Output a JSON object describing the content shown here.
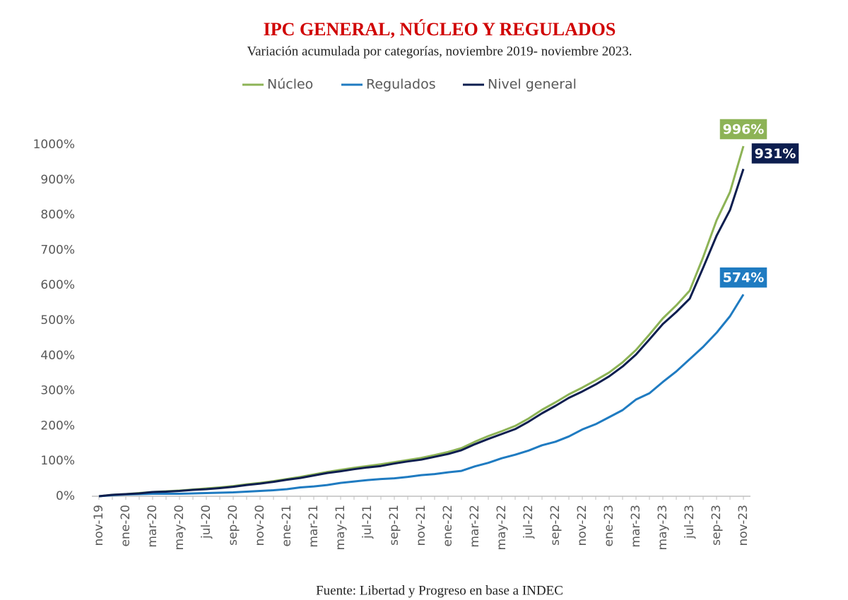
{
  "chart_data": {
    "type": "line",
    "title": "IPC GENERAL, NÚCLEO Y REGULADOS",
    "subtitle": "Variación acumulada por categorías, noviembre 2019- noviembre 2023.",
    "source": "Fuente: Libertad y Progreso en base a INDEC",
    "categories": [
      "nov-19",
      null,
      "ene-20",
      null,
      "mar-20",
      null,
      "may-20",
      null,
      "jul-20",
      null,
      "sep-20",
      null,
      "nov-20",
      null,
      "ene-21",
      null,
      "mar-21",
      null,
      "may-21",
      null,
      "jul-21",
      null,
      "sep-21",
      null,
      "nov-21",
      null,
      "ene-22",
      null,
      "mar-22",
      null,
      "may-22",
      null,
      "jul-22",
      null,
      "sep-22",
      null,
      "nov-22",
      null,
      "ene-23",
      null,
      "mar-23",
      null,
      "may-23",
      null,
      "jul-23",
      null,
      "sep-23",
      null,
      "nov-23"
    ],
    "series": [
      {
        "name": "Núcleo",
        "color": "#8db356",
        "values": [
          0,
          4,
          6,
          9,
          12,
          14,
          16,
          19,
          22,
          25,
          29,
          34,
          38,
          43,
          49,
          55,
          62,
          69,
          75,
          81,
          86,
          91,
          97,
          103,
          109,
          117,
          126,
          137,
          155,
          171,
          185,
          200,
          221,
          246,
          267,
          290,
          309,
          330,
          352,
          381,
          416,
          460,
          506,
          543,
          585,
          680,
          785,
          865,
          996
        ],
        "value_labels": [
          null,
          null,
          null,
          null,
          null,
          null,
          null,
          null,
          null,
          null,
          null,
          null,
          null,
          null,
          null,
          null,
          null,
          null,
          null,
          null,
          null,
          null,
          null,
          null,
          null,
          null,
          null,
          null,
          null,
          null,
          null,
          null,
          null,
          null,
          null,
          null,
          null,
          null,
          null,
          null,
          null,
          null,
          null,
          null,
          null,
          null,
          null,
          null,
          "996%"
        ]
      },
      {
        "name": "Regulados",
        "color": "#1f7bc1",
        "values": [
          0,
          3,
          5,
          6,
          7,
          7,
          7,
          8,
          9,
          10,
          11,
          13,
          15,
          17,
          20,
          25,
          28,
          32,
          38,
          42,
          46,
          49,
          51,
          55,
          60,
          63,
          68,
          72,
          85,
          95,
          108,
          118,
          130,
          145,
          155,
          170,
          190,
          205,
          225,
          245,
          275,
          293,
          325,
          355,
          390,
          425,
          465,
          512,
          574
        ],
        "value_labels": [
          null,
          null,
          null,
          null,
          null,
          null,
          null,
          null,
          null,
          null,
          null,
          null,
          null,
          null,
          null,
          null,
          null,
          null,
          null,
          null,
          null,
          null,
          null,
          null,
          null,
          null,
          null,
          null,
          null,
          null,
          null,
          null,
          null,
          null,
          null,
          null,
          null,
          null,
          null,
          null,
          null,
          null,
          null,
          null,
          null,
          null,
          null,
          null,
          "574%"
        ]
      },
      {
        "name": "Nivel general",
        "color": "#0d1e4f",
        "values": [
          0,
          4,
          6,
          8,
          12,
          13,
          15,
          18,
          20,
          23,
          27,
          32,
          36,
          41,
          47,
          52,
          59,
          66,
          71,
          77,
          82,
          86,
          93,
          99,
          104,
          112,
          120,
          131,
          148,
          163,
          177,
          191,
          212,
          236,
          257,
          280,
          298,
          318,
          341,
          369,
          403,
          446,
          490,
          524,
          562,
          650,
          741,
          814,
          931
        ],
        "value_labels": [
          null,
          null,
          null,
          null,
          null,
          null,
          null,
          null,
          null,
          null,
          null,
          null,
          null,
          null,
          null,
          null,
          null,
          null,
          null,
          null,
          null,
          null,
          null,
          null,
          null,
          null,
          null,
          null,
          null,
          null,
          null,
          null,
          null,
          null,
          null,
          null,
          null,
          null,
          null,
          null,
          null,
          null,
          null,
          null,
          null,
          null,
          null,
          null,
          "931%"
        ]
      }
    ],
    "ylim": [
      0,
      1000
    ],
    "yticks": [
      {
        "value": 0,
        "label": "0%"
      },
      {
        "value": 100,
        "label": "100%"
      },
      {
        "value": 200,
        "label": "200%"
      },
      {
        "value": 300,
        "label": "300%"
      },
      {
        "value": 400,
        "label": "400%"
      },
      {
        "value": 500,
        "label": "500%"
      },
      {
        "value": 600,
        "label": "600%"
      },
      {
        "value": 700,
        "label": "700%"
      },
      {
        "value": 800,
        "label": "800%"
      },
      {
        "value": 900,
        "label": "900%"
      },
      {
        "value": 1000,
        "label": "1000%"
      }
    ],
    "grid": false,
    "legend": "top"
  }
}
